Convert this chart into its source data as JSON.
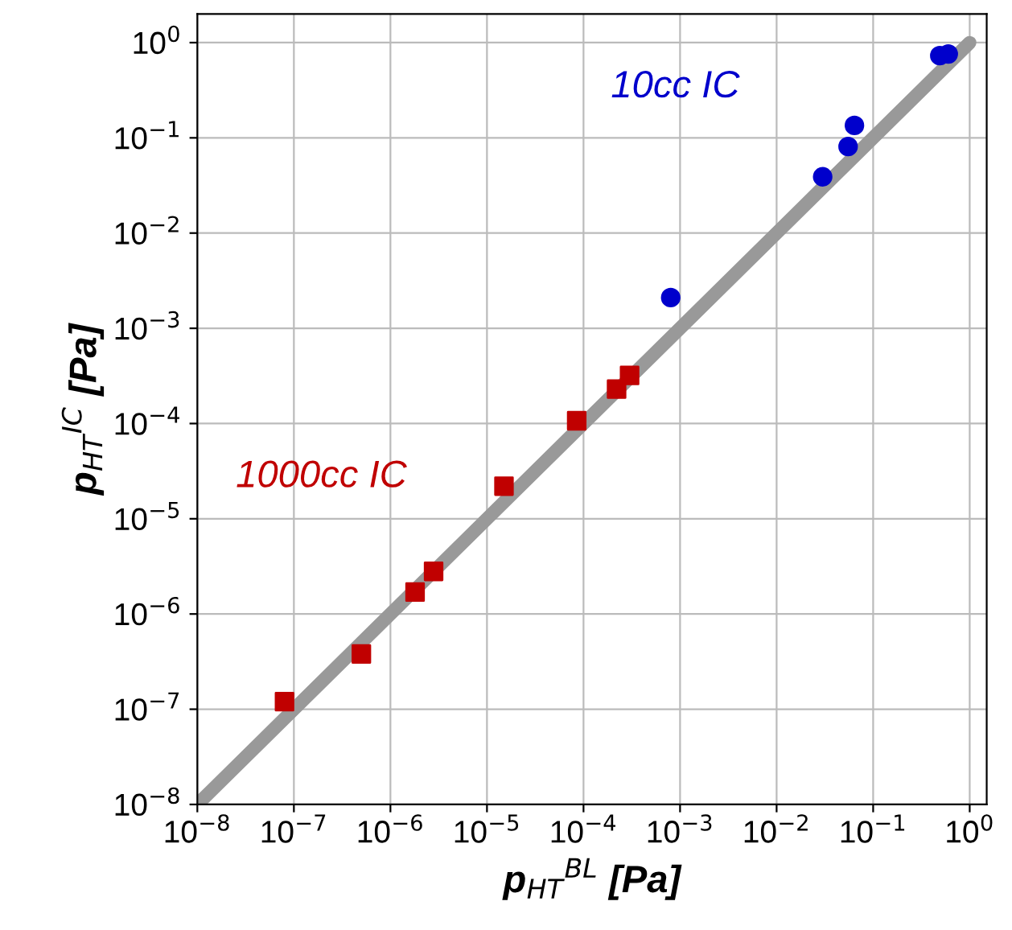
{
  "chart_data": {
    "type": "scatter",
    "xlabel": "p$_{HT}$$^{BL}$ [Pa]",
    "ylabel": "p$_{HT}$$^{IC}$ [Pa]",
    "log": "xy",
    "xlim": [
      1e-08,
      1.5
    ],
    "ylim": [
      1e-08,
      2
    ],
    "xticks": [
      {
        "value": 1e-08,
        "label": "10$^{−8}$"
      },
      {
        "value": 1e-07,
        "label": "10$^{−7}$"
      },
      {
        "value": 1e-06,
        "label": "10$^{−6}$"
      },
      {
        "value": 1e-05,
        "label": "10$^{−5}$"
      },
      {
        "value": 0.0001,
        "label": "10$^{−4}$"
      },
      {
        "value": 0.001,
        "label": "10$^{−3}$"
      },
      {
        "value": 0.01,
        "label": "10$^{−2}$"
      },
      {
        "value": 0.1,
        "label": "10$^{−1}$"
      },
      {
        "value": 1,
        "label": "10$^{0}$"
      }
    ],
    "yticks": [
      {
        "value": 1e-08,
        "label": "10$^{−8}$"
      },
      {
        "value": 1e-07,
        "label": "10$^{−7}$"
      },
      {
        "value": 1e-06,
        "label": "10$^{−6}$"
      },
      {
        "value": 1e-05,
        "label": "10$^{−5}$"
      },
      {
        "value": 0.0001,
        "label": "10$^{−4}$"
      },
      {
        "value": 0.001,
        "label": "10$^{−3}$"
      },
      {
        "value": 0.01,
        "label": "10$^{−2}$"
      },
      {
        "value": 0.1,
        "label": "10$^{−1}$"
      },
      {
        "value": 1,
        "label": "10$^{0}$"
      }
    ],
    "grid": true,
    "legend": false,
    "series": [
      {
        "type": "line",
        "color": "#999999",
        "x": [
          1e-08,
          1
        ],
        "values": [
          1e-08,
          1
        ],
        "marker": "none",
        "line_style": "solid"
      },
      {
        "name": "1000cc IC",
        "color": "#c00000",
        "marker": "square",
        "x": [
          8e-08,
          5e-07,
          1.8e-06,
          2.8e-06,
          1.5e-05,
          8.5e-05,
          0.00022,
          0.0003
        ],
        "values": [
          1.2e-07,
          3.8e-07,
          1.7e-06,
          2.8e-06,
          2.2e-05,
          0.000107,
          0.00023,
          0.00032
        ]
      },
      {
        "name": "10cc IC",
        "color": "#0000cc",
        "marker": "circle",
        "x": [
          0.0008,
          0.03,
          0.055,
          0.064,
          0.49,
          0.6
        ],
        "values": [
          0.0021,
          0.039,
          0.081,
          0.135,
          0.73,
          0.76
        ]
      }
    ]
  }
}
